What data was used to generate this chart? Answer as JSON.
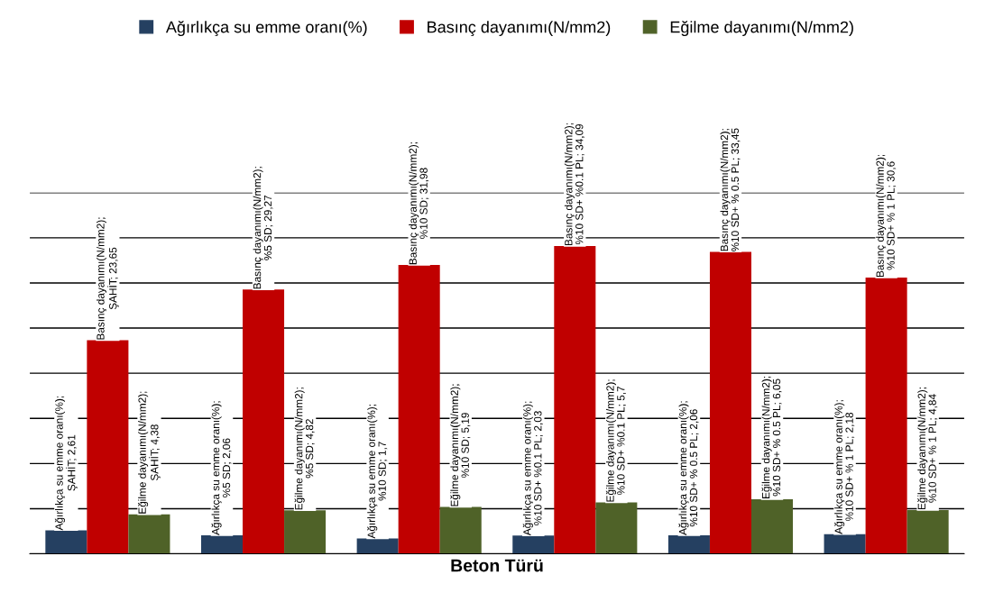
{
  "chart_data": {
    "type": "bar",
    "xlabel": "Beton Türü",
    "categories": [
      null,
      null,
      null,
      null,
      null,
      null
    ],
    "series": [
      {
        "name": "Ağırlıkça su emme oranı(%)",
        "color": "#254061",
        "values": [
          2.61,
          2.06,
          1.7,
          2.03,
          2.06,
          2.18
        ],
        "value_labels": [
          "Ağırlıkça su emme oranı(%); ŞAHİT; 2,61",
          "Ağırlıkça su emme oranı(%); %5 SD; 2,06",
          "Ağırlıkça su emme oranı(%); %10 SD; 1,7",
          "Ağırlıkça su emme oranı(%); %10 SD+ %0.1 PL; 2,03",
          "Ağırlıkça su emme oranı(%); %10 SD+ % 0.5 PL; 2,06",
          "Ağırlıkça su emme oranı(%); %10 SD+ % 1 PL; 2,18"
        ]
      },
      {
        "name": "Basınç dayanımı(N/mm2)",
        "color": "#c00000",
        "values": [
          23.65,
          29.27,
          31.98,
          34.09,
          33.45,
          30.6
        ],
        "value_labels": [
          "Basınç dayanımı(N/mm2); ŞAHİT; 23,65",
          "Basınç dayanımı(N/mm2); %5 SD; 29,27",
          "Basınç dayanımı(N/mm2); %10 SD; 31,98",
          "Basınç dayanımı(N/mm2); %10 SD+ %0.1 PL; 34,09",
          "Basınç dayanımı(N/mm2); %10 SD+ % 0.5 PL; 33,45",
          "Basınç dayanımı(N/mm2); %10 SD+ % 1 PL; 30,6"
        ]
      },
      {
        "name": "Eğilme dayanımı(N/mm2)",
        "color": "#4f6228",
        "values": [
          4.38,
          4.82,
          5.19,
          5.7,
          6.05,
          4.84
        ],
        "value_labels": [
          "Eğilme dayanımı(N/mm2); ŞAHİT; 4,38",
          "Eğilme dayanımı(N/mm2); %5 SD; 4,82",
          "Eğilme dayanımı(N/mm2); %10 SD; 5,19",
          "Eğilme dayanımı(N/mm2); %10 SD+ %0.1 PL; 5,7",
          "Eğilme dayanımı(N/mm2); %10 SD+ % 0.5 PL; 6,05",
          "Eğilme dayanımı(N/mm2); %10 SD+ % 1 PL; 4,84"
        ]
      }
    ],
    "ylim": [
      0,
      40
    ],
    "yticks": [
      {
        "value": 0,
        "label": null
      },
      {
        "value": 5,
        "label": null
      },
      {
        "value": 10,
        "label": null
      },
      {
        "value": 15,
        "label": null
      },
      {
        "value": 20,
        "label": null
      },
      {
        "value": 25,
        "label": null
      },
      {
        "value": 30,
        "label": null
      },
      {
        "value": 35,
        "label": null
      },
      {
        "value": 40,
        "label": null
      }
    ],
    "tick_labels": false,
    "grid": "y",
    "legend": "top"
  }
}
